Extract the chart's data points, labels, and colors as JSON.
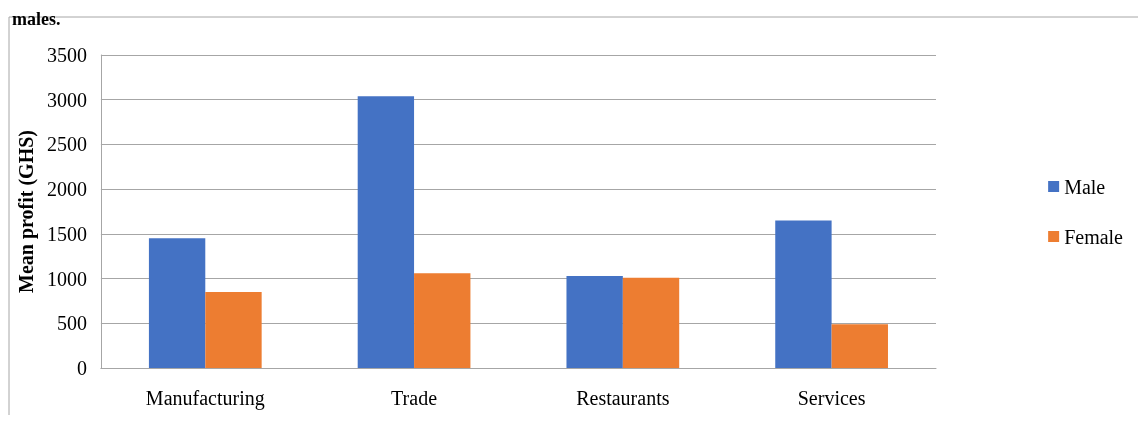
{
  "chart_data": {
    "type": "bar",
    "annotations": [
      "males."
    ],
    "ylabel": "Mean profit (GHS)",
    "categories": [
      "Manufacturing",
      "Trade",
      "Restaurants",
      "Services"
    ],
    "series": [
      {
        "name": "Male",
        "color": "#4472c4",
        "values": [
          1450,
          3040,
          1030,
          1650
        ]
      },
      {
        "name": "Female",
        "color": "#ed7d31",
        "values": [
          850,
          1060,
          1010,
          490
        ]
      }
    ],
    "ylim": [
      0,
      3500
    ],
    "yticks": [
      0,
      500,
      1000,
      1500,
      2000,
      2500,
      3000,
      3500
    ],
    "grid": "y",
    "legend": "right"
  }
}
